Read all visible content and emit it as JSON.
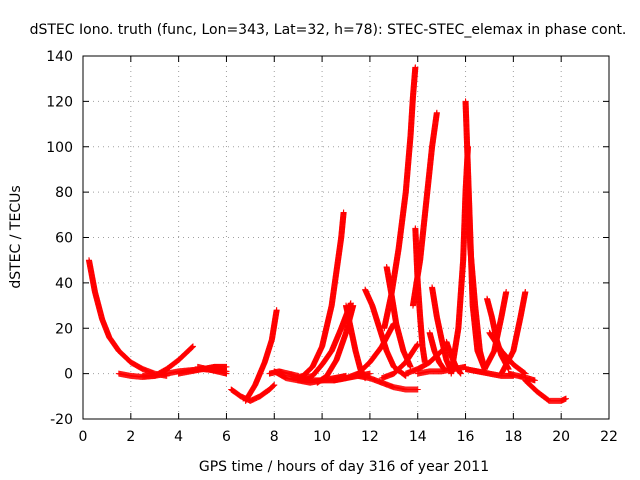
{
  "chart_data": {
    "type": "scatter",
    "title": "dSTEC Iono. truth (func, Lon=343, Lat=32, h=78): STEC-STEC_elemax in phase cont.",
    "xlabel": "GPS time / hours of day 316 of year 2011",
    "ylabel": "dSTEC  / TECUs",
    "xlim": [
      0,
      22
    ],
    "ylim": [
      -20,
      140
    ],
    "xticks": [
      0,
      2,
      4,
      6,
      8,
      10,
      12,
      14,
      16,
      18,
      20,
      22
    ],
    "yticks": [
      -20,
      0,
      20,
      40,
      60,
      80,
      100,
      120,
      140
    ],
    "grid": true,
    "marker": "plus",
    "marker_color": "#ff0000",
    "series": [
      {
        "x": [
          0.25,
          0.5,
          0.8,
          1.1,
          1.5,
          2.0,
          2.5,
          3.0,
          3.5
        ],
        "y": [
          50,
          36,
          24,
          16,
          10,
          5,
          2,
          0,
          -1
        ]
      },
      {
        "x": [
          1.5,
          2.0,
          2.5,
          3.0,
          3.5,
          4.0,
          4.6
        ],
        "y": [
          0,
          -1,
          -1.5,
          -1,
          2,
          6,
          12
        ]
      },
      {
        "x": [
          2.5,
          3.0,
          3.5,
          4.0,
          4.5,
          5.0,
          5.5,
          6.0
        ],
        "y": [
          -1,
          -1,
          0,
          1,
          1.5,
          2,
          3,
          3
        ]
      },
      {
        "x": [
          4.0,
          4.5,
          5.0,
          5.5,
          6.0
        ],
        "y": [
          0,
          1,
          2,
          1.5,
          1
        ]
      },
      {
        "x": [
          4.8,
          5.2,
          5.6,
          6.0
        ],
        "y": [
          3,
          2,
          1,
          0
        ]
      },
      {
        "x": [
          6.2,
          6.6,
          7.0,
          7.4,
          7.8,
          8.0
        ],
        "y": [
          -7,
          -10,
          -12,
          -10,
          -7,
          -5
        ]
      },
      {
        "x": [
          6.8,
          7.2,
          7.6,
          7.9,
          8.1
        ],
        "y": [
          -12,
          -5,
          5,
          15,
          28
        ]
      },
      {
        "x": [
          7.8,
          8.2,
          8.6,
          9.0
        ],
        "y": [
          0,
          1,
          0,
          -1
        ]
      },
      {
        "x": [
          8.0,
          8.5,
          9.0,
          9.5,
          10.0,
          10.5,
          11.0
        ],
        "y": [
          1,
          -2,
          -3,
          -4,
          -3,
          -2,
          -1
        ]
      },
      {
        "x": [
          8.8,
          9.2,
          9.6,
          10.0,
          10.4,
          10.6,
          10.8,
          10.9
        ],
        "y": [
          -2,
          -1,
          3,
          12,
          30,
          45,
          60,
          71
        ]
      },
      {
        "x": [
          9.2,
          9.6,
          10.0,
          10.4,
          10.8,
          11.2
        ],
        "y": [
          -2,
          -1,
          4,
          10,
          20,
          31
        ]
      },
      {
        "x": [
          9.0,
          9.5,
          10.0,
          10.5,
          11.0,
          11.5,
          12.0
        ],
        "y": [
          -3,
          -3,
          -3,
          -3,
          -2,
          -1,
          0
        ]
      },
      {
        "x": [
          9.8,
          10.2,
          10.6,
          11.0,
          11.3
        ],
        "y": [
          -4,
          -1,
          6,
          18,
          30
        ]
      },
      {
        "x": [
          11.0,
          11.2,
          11.4,
          11.6,
          11.8
        ],
        "y": [
          30,
          20,
          10,
          2,
          -2
        ]
      },
      {
        "x": [
          10.5,
          11.0,
          11.5,
          12.0,
          12.5,
          13.0
        ],
        "y": [
          -3,
          -2,
          0,
          5,
          12,
          22
        ]
      },
      {
        "x": [
          11.8,
          12.1,
          12.4,
          12.7,
          13.0,
          13.5
        ],
        "y": [
          37,
          30,
          20,
          10,
          3,
          -1
        ]
      },
      {
        "x": [
          11.5,
          12.0,
          12.5,
          13.0,
          13.5,
          14.0
        ],
        "y": [
          -1,
          -2,
          -4,
          -6,
          -7,
          -7
        ]
      },
      {
        "x": [
          12.7,
          12.9,
          13.1,
          13.4,
          13.7
        ],
        "y": [
          47,
          35,
          22,
          10,
          3
        ]
      },
      {
        "x": [
          12.6,
          12.9,
          13.2,
          13.5,
          13.7,
          13.8,
          13.9
        ],
        "y": [
          20,
          35,
          55,
          80,
          105,
          122,
          135
        ]
      },
      {
        "x": [
          12.5,
          13.0,
          13.5,
          14.0
        ],
        "y": [
          -2,
          0,
          5,
          13
        ]
      },
      {
        "x": [
          13.9,
          14.0,
          14.1,
          14.2,
          14.3
        ],
        "y": [
          64,
          40,
          25,
          12,
          5
        ]
      },
      {
        "x": [
          13.8,
          14.1,
          14.4,
          14.6,
          14.8
        ],
        "y": [
          30,
          50,
          80,
          100,
          115
        ]
      },
      {
        "x": [
          13.5,
          14.0,
          14.5,
          15.0
        ],
        "y": [
          0,
          2,
          5,
          10
        ]
      },
      {
        "x": [
          14.5,
          14.7,
          14.9,
          15.1
        ],
        "y": [
          18,
          10,
          5,
          2
        ]
      },
      {
        "x": [
          14.6,
          14.8,
          15.0,
          15.2,
          15.4
        ],
        "y": [
          38,
          25,
          15,
          6,
          1
        ]
      },
      {
        "x": [
          14.0,
          14.5,
          15.0,
          15.5,
          16.0
        ],
        "y": [
          0,
          1,
          1,
          2,
          3
        ]
      },
      {
        "x": [
          15.2,
          15.4,
          15.6,
          15.8
        ],
        "y": [
          14,
          8,
          3,
          0
        ]
      },
      {
        "x": [
          15.4,
          15.7,
          15.9,
          16.0,
          16.1
        ],
        "y": [
          0,
          20,
          50,
          80,
          100
        ]
      },
      {
        "x": [
          16.0,
          16.1,
          16.2,
          16.3,
          16.5,
          16.8
        ],
        "y": [
          120,
          90,
          60,
          30,
          10,
          2
        ]
      },
      {
        "x": [
          16.1,
          16.2,
          16.4,
          16.6,
          16.8
        ],
        "y": [
          85,
          55,
          30,
          10,
          2
        ]
      },
      {
        "x": [
          16.0,
          16.5,
          17.0,
          17.5,
          18.0
        ],
        "y": [
          2,
          1,
          0,
          -1,
          -1
        ]
      },
      {
        "x": [
          16.9,
          17.1,
          17.3,
          17.5,
          17.8
        ],
        "y": [
          33,
          25,
          15,
          8,
          2
        ]
      },
      {
        "x": [
          16.8,
          17.2,
          17.5,
          17.7
        ],
        "y": [
          2,
          10,
          25,
          36
        ]
      },
      {
        "x": [
          17.0,
          17.5,
          18.0,
          18.5
        ],
        "y": [
          18,
          10,
          4,
          0
        ]
      },
      {
        "x": [
          17.5,
          18.0,
          18.3,
          18.5
        ],
        "y": [
          0,
          10,
          25,
          36
        ]
      },
      {
        "x": [
          17.8,
          18.2,
          18.6,
          18.9
        ],
        "y": [
          0,
          -1,
          -2,
          -3
        ]
      },
      {
        "x": [
          18.5,
          19.0,
          19.5,
          20.0,
          20.2
        ],
        "y": [
          -3,
          -8,
          -12,
          -12,
          -11
        ]
      }
    ]
  }
}
